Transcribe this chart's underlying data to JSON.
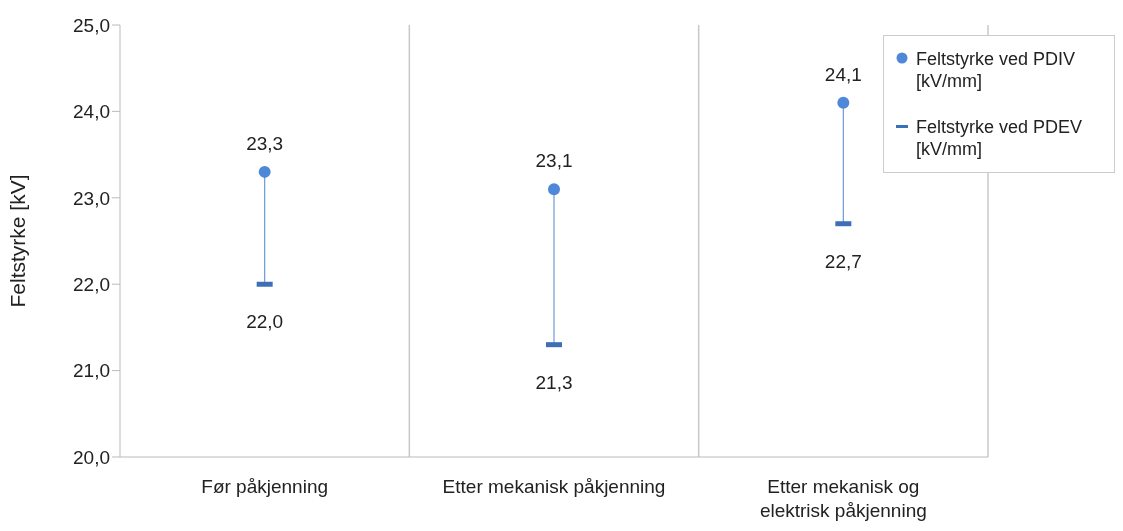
{
  "chart_data": {
    "type": "scatter",
    "ylabel": "Feltstyrke [kV]",
    "categories": [
      "Før påkjenning",
      "Etter mekanisk påkjenning",
      "Etter mekanisk og elektrisk påkjenning"
    ],
    "series": [
      {
        "name": "Feltstyrke ved PDIV [kV/mm]",
        "color": "#4f88d8",
        "marker": "circle",
        "values": [
          23.3,
          23.1,
          24.1
        ],
        "value_labels": [
          "23,3",
          "23,1",
          "24,1"
        ]
      },
      {
        "name": "Feltstyrke ved PDEV [kV/mm]",
        "color": "#3d6fb6",
        "values": [
          22.0,
          21.3,
          22.7
        ],
        "value_labels": [
          "22,0",
          "21,3",
          "22,7"
        ]
      }
    ],
    "ylim": [
      20,
      25
    ],
    "yticks": [
      {
        "value": 20,
        "label": "20,0"
      },
      {
        "value": 21,
        "label": "21,0"
      },
      {
        "value": 22,
        "label": "22,0"
      },
      {
        "value": 23,
        "label": "23,0"
      },
      {
        "value": 24,
        "label": "24,0"
      },
      {
        "value": 25,
        "label": "25,0"
      }
    ],
    "grid": "x",
    "legend": "top right"
  }
}
